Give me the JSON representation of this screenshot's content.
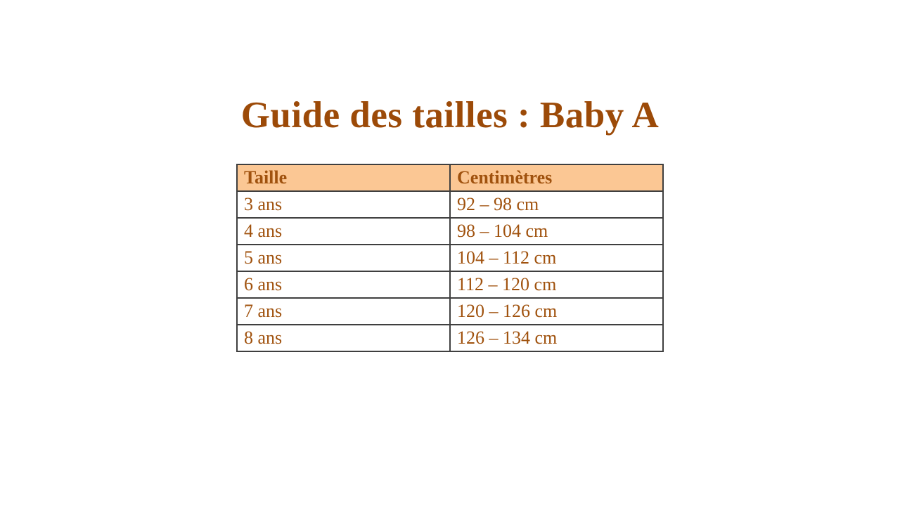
{
  "title": {
    "text": "Guide des tailles : Baby A"
  },
  "table": {
    "headers": [
      "Taille",
      "Centimètres"
    ],
    "rows": [
      [
        "3 ans",
        "92 – 98 cm"
      ],
      [
        "4 ans",
        "98 – 104 cm"
      ],
      [
        "5 ans",
        "104 – 112 cm"
      ],
      [
        "6 ans",
        "112 – 120 cm"
      ],
      [
        "7 ans",
        "120 – 126 cm"
      ],
      [
        "8 ans",
        "126 – 134 cm"
      ]
    ]
  },
  "colors": {
    "title_text": "#9C4A08",
    "table_text": "#A0520E",
    "header_background": "#FBC794",
    "table_border": "#3F3F3F",
    "page_background": "#FFFFFF"
  }
}
